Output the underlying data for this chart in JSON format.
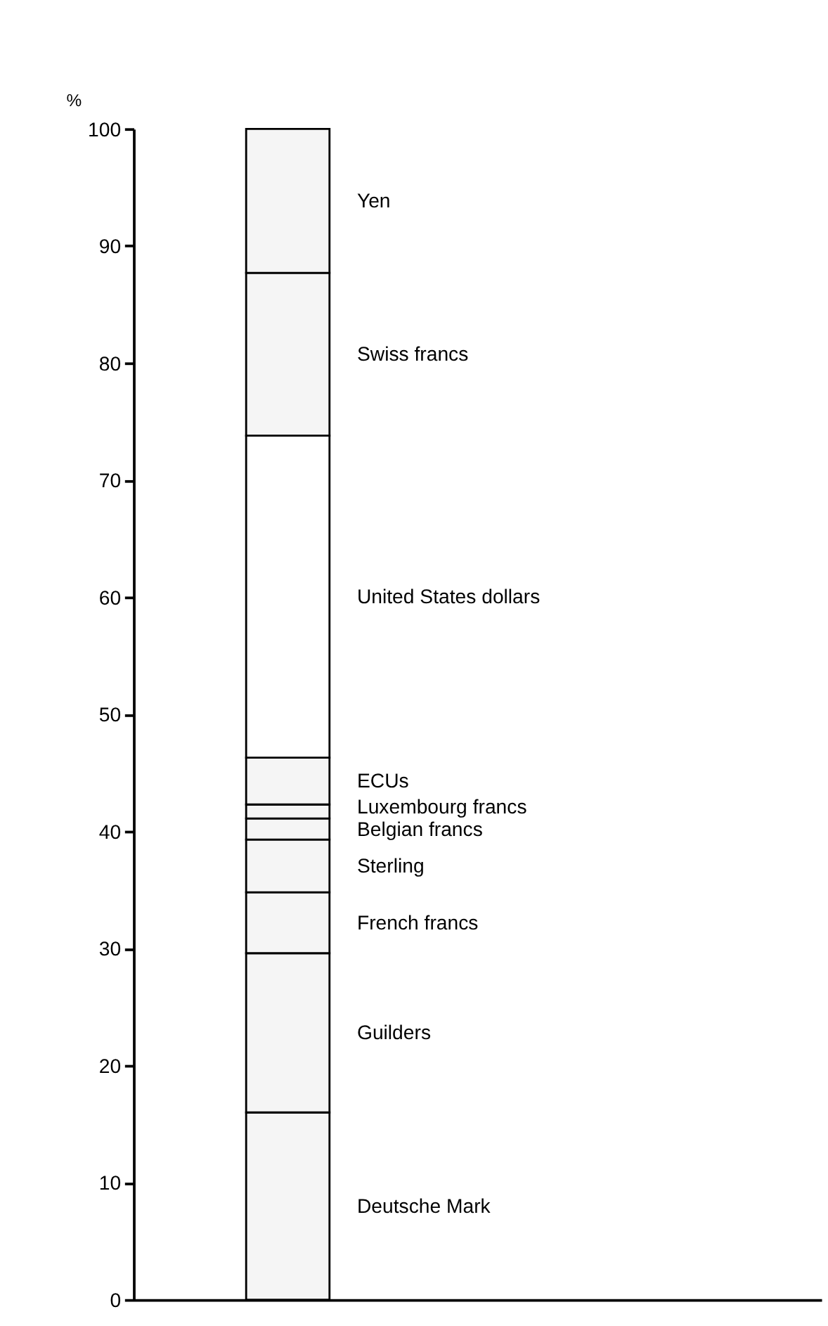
{
  "chart_data": {
    "type": "bar",
    "stacked": true,
    "ylabel": "%",
    "categories": [
      null
    ],
    "series": [
      {
        "name": "Deutsche Mark",
        "color": "#f5f5f5",
        "values": [
          16.0
        ]
      },
      {
        "name": "Guilders",
        "color": "#f5f5f5",
        "values": [
          13.6
        ]
      },
      {
        "name": "French francs",
        "color": "#f5f5f5",
        "values": [
          5.2
        ]
      },
      {
        "name": "Sterling",
        "color": "#f5f5f5",
        "values": [
          4.5
        ]
      },
      {
        "name": "Belgian francs",
        "color": "#f5f5f5",
        "values": [
          1.8
        ]
      },
      {
        "name": "Luxembourg francs",
        "color": "#f5f5f5",
        "values": [
          1.2
        ]
      },
      {
        "name": "ECUs",
        "color": "#f5f5f5",
        "values": [
          4.0
        ]
      },
      {
        "name": "United States dollars",
        "color": "#ffffff",
        "values": [
          27.5
        ]
      },
      {
        "name": "Swiss francs",
        "color": "#f5f5f5",
        "values": [
          13.9
        ]
      },
      {
        "name": "Yen",
        "color": "#f5f5f5",
        "values": [
          12.3
        ]
      }
    ],
    "ylim": [
      0,
      100
    ],
    "yticks": [
      0,
      10,
      20,
      30,
      40,
      50,
      60,
      70,
      80,
      90,
      100
    ],
    "tick_labels": "y",
    "grid": false
  }
}
